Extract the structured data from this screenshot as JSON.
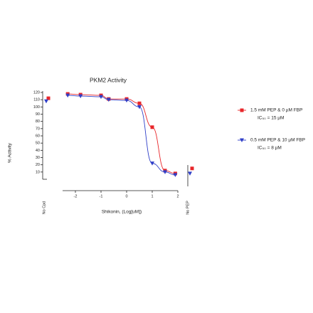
{
  "chart_data": {
    "type": "line",
    "title": "PKM2 Activity",
    "xlabel": "Shikonin, (Log[uM])",
    "ylabel": "% Activity",
    "xlim": [
      -2.5,
      2
    ],
    "xticks": [
      -2,
      -1,
      0,
      1,
      2
    ],
    "ylim": [
      0,
      120
    ],
    "yticks": [
      10,
      20,
      30,
      40,
      50,
      60,
      70,
      80,
      90,
      100,
      110,
      120
    ],
    "control_categories": [
      "No Cpd",
      "No PEP"
    ],
    "series": [
      {
        "name": "1.5 mM PEP & 0 µM FBP",
        "note": "IC₅₀ = 15 µM",
        "color": "#e8262a",
        "marker": "square",
        "x": [
          -2.3,
          -1.8,
          -1.0,
          -0.7,
          0,
          0.5,
          1.0,
          1.5,
          1.9
        ],
        "values": [
          118,
          117,
          116,
          111,
          111,
          105,
          72,
          12,
          8
        ],
        "control_values": [
          112,
          15
        ]
      },
      {
        "name": "0.5 mM PEP & 10 µM FBP",
        "note": "IC₅₀ = 8 µM",
        "color": "#2f3fc8",
        "marker": "triangle",
        "x": [
          -2.3,
          -1.8,
          -1.0,
          -0.7,
          0,
          0.5,
          1.0,
          1.5,
          1.9
        ],
        "values": [
          116,
          115,
          114,
          110,
          109,
          100,
          22,
          10,
          6
        ],
        "control_values": [
          108,
          8
        ]
      }
    ]
  }
}
